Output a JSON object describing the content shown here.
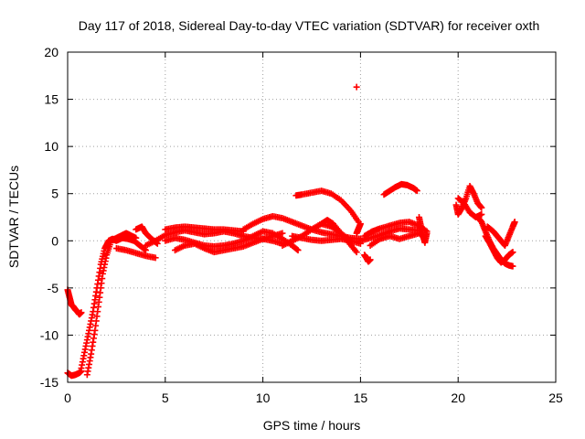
{
  "chart_data": {
    "type": "scatter",
    "title": "Day 117 of 2018, Sidereal Day-to-day VTEC variation (SDTVAR) for receiver oxth",
    "xlabel": "GPS time / hours",
    "ylabel": "SDTVAR / TECUs",
    "xlim": [
      0,
      25
    ],
    "ylim": [
      -15,
      20
    ],
    "xticks": [
      0,
      5,
      10,
      15,
      20,
      25
    ],
    "yticks": [
      -15,
      -10,
      -5,
      0,
      5,
      10,
      15,
      20
    ],
    "grid": true,
    "marker": "+",
    "series": [
      {
        "name": "SDTVAR",
        "color": "#ff0000",
        "segments": [
          {
            "x": [
              0.0,
              0.1,
              0.2,
              0.3,
              0.4,
              0.5,
              0.6,
              0.7
            ],
            "y": [
              -5.2,
              -6.0,
              -6.8,
              -7.0,
              -7.3,
              -7.5,
              -7.8,
              -7.6
            ]
          },
          {
            "x": [
              0.0,
              0.2,
              0.4,
              0.6,
              0.7
            ],
            "y": [
              -14.0,
              -14.3,
              -14.2,
              -14.0,
              -13.8
            ]
          },
          {
            "x": [
              0.7,
              0.9,
              1.1,
              1.3,
              1.5,
              1.7,
              1.9,
              2.1,
              2.3,
              2.5,
              2.8,
              3.1,
              3.4,
              3.7,
              4.0
            ],
            "y": [
              -13.5,
              -11.5,
              -9.5,
              -7.5,
              -5.0,
              -2.5,
              -0.8,
              0.0,
              0.2,
              0.0,
              0.3,
              0.2,
              0.0,
              -0.5,
              -1.0
            ]
          },
          {
            "x": [
              1.0,
              1.2,
              1.4,
              1.6,
              1.8,
              2.0,
              2.2
            ],
            "y": [
              -14.2,
              -12.0,
              -9.5,
              -6.5,
              -3.5,
              -1.5,
              -0.2
            ]
          },
          {
            "x": [
              2.2,
              2.5,
              2.8,
              3.0,
              3.2,
              3.5
            ],
            "y": [
              0.0,
              0.3,
              0.6,
              0.8,
              0.6,
              0.3
            ]
          },
          {
            "x": [
              2.5,
              3.0,
              3.5,
              4.0,
              4.5
            ],
            "y": [
              -0.8,
              -1.0,
              -1.3,
              -1.6,
              -1.8
            ]
          },
          {
            "x": [
              3.5,
              3.8,
              4.0,
              4.3,
              4.6
            ],
            "y": [
              1.2,
              1.5,
              0.8,
              0.2,
              -0.3
            ]
          },
          {
            "x": [
              4.0,
              4.5,
              5.0,
              5.5,
              6.0,
              6.5,
              7.0,
              7.5,
              8.0,
              8.5,
              9.0,
              9.5,
              10.0,
              10.5,
              11.0
            ],
            "y": [
              -0.5,
              0.0,
              0.6,
              0.9,
              1.1,
              0.9,
              0.7,
              0.8,
              1.0,
              0.8,
              0.5,
              0.3,
              0.2,
              0.0,
              -0.3
            ]
          },
          {
            "x": [
              5.0,
              5.5,
              6.0,
              6.5,
              7.0,
              7.5,
              8.0,
              8.5,
              9.0,
              9.5,
              10.0,
              10.5,
              11.0,
              11.5,
              11.8
            ],
            "y": [
              0.0,
              0.3,
              0.1,
              -0.2,
              -0.5,
              -0.6,
              -0.5,
              -0.3,
              0.0,
              0.5,
              1.0,
              0.8,
              0.2,
              -0.5,
              -1.0
            ]
          },
          {
            "x": [
              5.5,
              6.0,
              6.5,
              7.0,
              7.5,
              8.0,
              8.5,
              9.0,
              9.5,
              10.0,
              10.5,
              11.0
            ],
            "y": [
              -1.0,
              -0.5,
              -0.3,
              -0.8,
              -1.2,
              -1.0,
              -0.8,
              -0.6,
              -0.2,
              0.2,
              0.5,
              0.8
            ]
          },
          {
            "x": [
              5.0,
              5.5,
              6.0,
              6.5,
              7.0,
              7.5,
              8.0,
              8.5,
              9.0
            ],
            "y": [
              1.2,
              1.4,
              1.5,
              1.4,
              1.3,
              1.2,
              1.2,
              1.1,
              1.0
            ]
          },
          {
            "x": [
              9.0,
              9.5,
              10.0,
              10.5,
              11.0,
              11.5,
              12.0,
              12.5,
              13.0,
              13.5,
              14.0,
              14.5,
              15.0
            ],
            "y": [
              1.2,
              1.8,
              2.3,
              2.6,
              2.4,
              2.0,
              1.6,
              1.2,
              0.9,
              0.7,
              0.5,
              0.3,
              0.2
            ]
          },
          {
            "x": [
              11.5,
              12.0,
              12.5,
              13.0,
              13.5,
              14.0,
              14.5,
              15.0
            ],
            "y": [
              0.5,
              0.3,
              0.1,
              0.0,
              0.1,
              0.2,
              0.0,
              -0.3
            ]
          },
          {
            "x": [
              11.0,
              11.5,
              12.0,
              12.5,
              13.0,
              13.5,
              14.0,
              14.5
            ],
            "y": [
              -0.5,
              0.0,
              0.5,
              1.2,
              1.8,
              1.5,
              0.8,
              0.0
            ]
          },
          {
            "x": [
              12.5,
              13.0,
              13.3,
              13.6,
              14.0,
              14.4,
              14.8
            ],
            "y": [
              1.2,
              1.8,
              2.2,
              1.8,
              0.8,
              -0.2,
              -1.2
            ]
          },
          {
            "x": [
              11.7,
              12.0,
              12.5,
              13.0,
              13.5,
              14.0,
              14.5,
              14.9
            ],
            "y": [
              4.8,
              4.9,
              5.1,
              5.3,
              5.0,
              4.3,
              3.2,
              2.0
            ]
          },
          {
            "x": [
              14.8,
              14.9,
              15.0
            ],
            "y": [
              0.8,
              1.3,
              1.8
            ]
          },
          {
            "x": [
              15.2,
              15.3,
              15.4,
              15.5
            ],
            "y": [
              -1.5,
              -1.8,
              -2.2,
              -2.0
            ]
          },
          {
            "x": [
              15.0,
              15.5,
              16.0,
              16.5,
              17.0,
              17.5,
              18.0
            ],
            "y": [
              0.0,
              0.3,
              0.6,
              1.0,
              1.3,
              1.2,
              1.1
            ]
          },
          {
            "x": [
              15.2,
              15.6,
              16.0,
              16.5,
              17.0,
              17.5,
              18.0,
              18.4
            ],
            "y": [
              0.5,
              1.0,
              1.3,
              1.6,
              1.9,
              2.0,
              1.6,
              1.0
            ]
          },
          {
            "x": [
              15.5,
              16.0,
              16.5,
              17.0,
              17.5,
              18.0,
              18.3
            ],
            "y": [
              -0.5,
              0.2,
              0.5,
              0.2,
              0.5,
              0.8,
              0.3
            ]
          },
          {
            "x": [
              16.2,
              16.5,
              16.8,
              17.1,
              17.4,
              17.7,
              17.9
            ],
            "y": [
              4.9,
              5.3,
              5.7,
              6.0,
              5.9,
              5.6,
              5.3
            ]
          },
          {
            "x": [
              18.0,
              18.1,
              18.2,
              18.3,
              18.4
            ],
            "y": [
              2.5,
              1.5,
              0.5,
              -0.2,
              0.8
            ]
          },
          {
            "x": [
              19.9,
              20.0,
              20.2,
              20.4,
              20.6,
              20.8,
              21.0,
              21.2
            ],
            "y": [
              3.8,
              2.8,
              3.5,
              4.5,
              5.8,
              5.0,
              4.0,
              3.5
            ]
          },
          {
            "x": [
              20.0,
              20.3,
              20.6,
              20.9,
              21.2
            ],
            "y": [
              4.5,
              4.0,
              3.0,
              2.5,
              2.8
            ]
          },
          {
            "x": [
              21.0,
              21.2,
              21.4,
              21.6,
              21.8,
              22.0,
              22.2,
              22.4,
              22.6,
              22.8
            ],
            "y": [
              2.5,
              2.0,
              1.0,
              0.0,
              -0.8,
              -1.4,
              -2.0,
              -2.4,
              -2.6,
              -2.7
            ]
          },
          {
            "x": [
              21.4,
              21.6,
              21.8,
              22.0,
              22.2,
              22.4,
              22.6,
              22.8
            ],
            "y": [
              0.5,
              -0.2,
              -1.0,
              -1.8,
              -2.3,
              -2.0,
              -1.5,
              -1.2
            ]
          },
          {
            "x": [
              21.5,
              21.8,
              22.0,
              22.2,
              22.4,
              22.6,
              22.8,
              22.9
            ],
            "y": [
              1.5,
              1.0,
              0.5,
              0.0,
              -0.5,
              0.5,
              1.5,
              2.0
            ]
          },
          {
            "x": [
              14.8
            ],
            "y": [
              16.3
            ]
          }
        ]
      }
    ]
  }
}
